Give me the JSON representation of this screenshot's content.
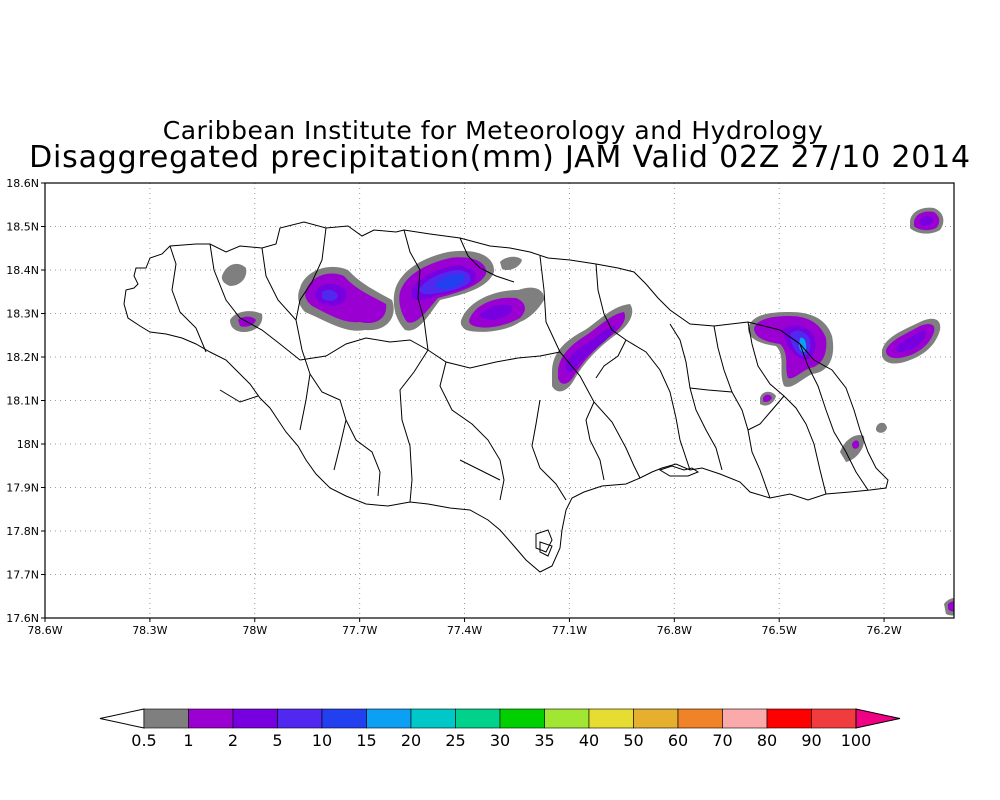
{
  "title": {
    "line1": "Caribbean Institute for Meteorology and Hydrology",
    "line2": "Disaggregated precipitation(mm) JAM Valid 02Z 27/10 2014"
  },
  "axes": {
    "lon_min": -78.6,
    "lon_max": -76.0,
    "lat_min": 17.6,
    "lat_max": 18.6,
    "x_ticks": [
      {
        "value": -78.6,
        "label": "78.6W"
      },
      {
        "value": -78.3,
        "label": "78.3W"
      },
      {
        "value": -78.0,
        "label": "78W"
      },
      {
        "value": -77.7,
        "label": "77.7W"
      },
      {
        "value": -77.4,
        "label": "77.4W"
      },
      {
        "value": -77.1,
        "label": "77.1W"
      },
      {
        "value": -76.8,
        "label": "76.8W"
      },
      {
        "value": -76.5,
        "label": "76.5W"
      },
      {
        "value": -76.2,
        "label": "76.2W"
      }
    ],
    "y_ticks": [
      {
        "value": 17.6,
        "label": "17.6N"
      },
      {
        "value": 17.7,
        "label": "17.7N"
      },
      {
        "value": 17.8,
        "label": "17.8N"
      },
      {
        "value": 17.9,
        "label": "17.9N"
      },
      {
        "value": 18.0,
        "label": "18N"
      },
      {
        "value": 18.1,
        "label": "18.1N"
      },
      {
        "value": 18.2,
        "label": "18.2N"
      },
      {
        "value": 18.3,
        "label": "18.3N"
      },
      {
        "value": 18.4,
        "label": "18.4N"
      },
      {
        "value": 18.5,
        "label": "18.5N"
      },
      {
        "value": 18.6,
        "label": "18.6N"
      }
    ],
    "grid": "dotted"
  },
  "colorbar": {
    "labels": [
      "0.5",
      "1",
      "2",
      "5",
      "10",
      "15",
      "20",
      "25",
      "30",
      "35",
      "40",
      "50",
      "60",
      "70",
      "80",
      "90",
      "100"
    ],
    "colors": [
      "#7f7f7f",
      "#9b00d2",
      "#7800e0",
      "#5028f0",
      "#2340f0",
      "#0ca0f5",
      "#00c8c8",
      "#00d28c",
      "#00d000",
      "#a0e632",
      "#e6dc32",
      "#e6af2d",
      "#f08228",
      "#faaaaa",
      "#ff0000",
      "#f03c3c"
    ],
    "low_color": "#ffffff",
    "high_color": "#f00082"
  },
  "chart_data": {
    "type": "map",
    "region": "Jamaica",
    "variable": "Disaggregated precipitation (mm)",
    "rain_areas": [
      {
        "lon": -77.72,
        "lat": 18.34,
        "max_class": "2"
      },
      {
        "lon": -77.42,
        "lat": 18.38,
        "max_class": "10"
      },
      {
        "lon": -77.27,
        "lat": 18.3,
        "max_class": "2"
      },
      {
        "lon": -77.0,
        "lat": 18.22,
        "max_class": "2"
      },
      {
        "lon": -76.42,
        "lat": 18.24,
        "max_class": "15"
      },
      {
        "lon": -76.17,
        "lat": 18.22,
        "max_class": "2"
      },
      {
        "lon": -76.13,
        "lat": 18.52,
        "max_class": "2"
      },
      {
        "lon": -78.03,
        "lat": 18.28,
        "max_class": "2"
      },
      {
        "lon": -76.03,
        "lat": 17.62,
        "max_class": "2"
      },
      {
        "lon": -76.52,
        "lat": 18.11,
        "max_class": "2"
      }
    ]
  }
}
